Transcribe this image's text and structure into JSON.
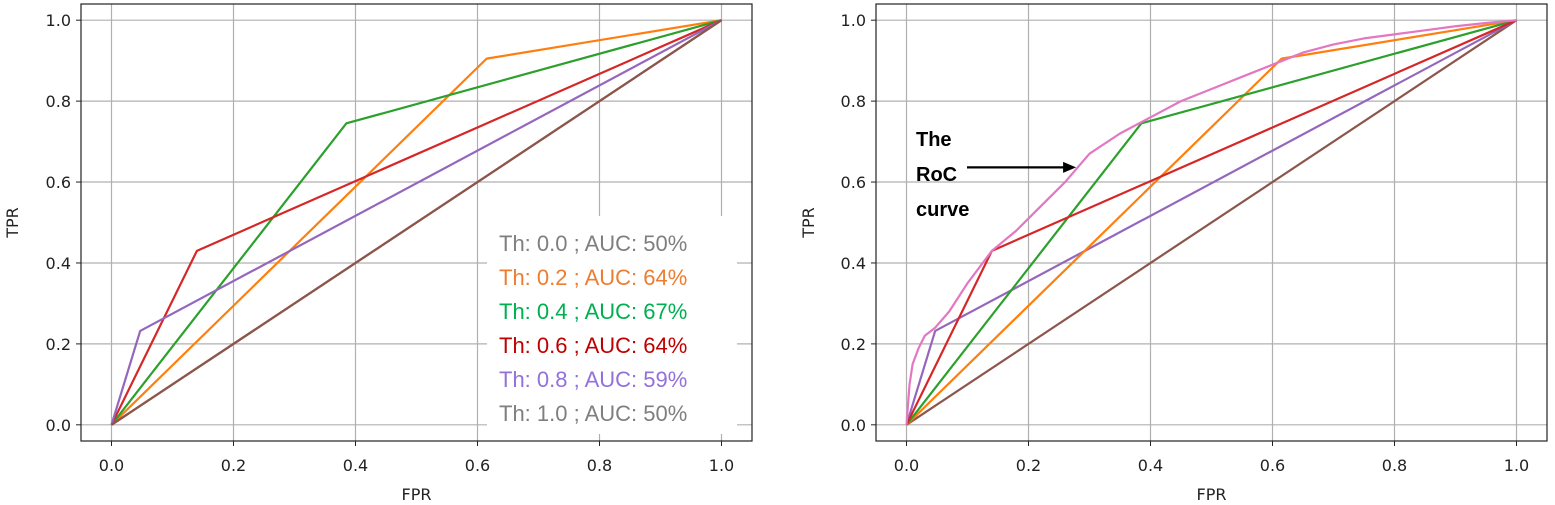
{
  "chart_data": [
    {
      "type": "line",
      "xlabel": "FPR",
      "ylabel": "TPR",
      "xlim": [
        -0.05,
        1.05
      ],
      "ylim": [
        -0.04,
        1.04
      ],
      "xticks": [
        "0.0",
        "0.2",
        "0.4",
        "0.6",
        "0.8",
        "1.0"
      ],
      "yticks": [
        "0.0",
        "0.2",
        "0.4",
        "0.6",
        "0.8",
        "1.0"
      ],
      "grid": true,
      "legend_position": "bottom-right",
      "series": [
        {
          "name": "Th:  0.0 ; AUC: 50%",
          "color": "#8c564b",
          "legend_color": "#7f7f7f",
          "x": [
            0,
            1
          ],
          "y": [
            0,
            1
          ]
        },
        {
          "name": "Th:  0.2 ; AUC: 64%",
          "color": "#ff7f0e",
          "legend_color": "#ed7d31",
          "x": [
            0,
            0.615,
            1
          ],
          "y": [
            0,
            0.905,
            1
          ]
        },
        {
          "name": "Th:  0.4 ; AUC: 67%",
          "color": "#2ca02c",
          "legend_color": "#00b050",
          "x": [
            0,
            0.385,
            1
          ],
          "y": [
            0,
            0.745,
            1
          ]
        },
        {
          "name": "Th:  0.6 ; AUC: 64%",
          "color": "#d62728",
          "legend_color": "#c00000",
          "x": [
            0,
            0.14,
            1
          ],
          "y": [
            0,
            0.43,
            1
          ]
        },
        {
          "name": "Th:  0.8 ; AUC: 59%",
          "color": "#9467bd",
          "legend_color": "#9370db",
          "x": [
            0,
            0.047,
            1
          ],
          "y": [
            0,
            0.232,
            1
          ]
        },
        {
          "name": "Th:  1.0 ; AUC: 50%",
          "color": "#8c564b",
          "legend_color": "#7f7f7f",
          "x": [
            0,
            1
          ],
          "y": [
            0,
            1
          ]
        }
      ]
    },
    {
      "type": "line",
      "xlabel": "FPR",
      "ylabel": "TPR",
      "xlim": [
        -0.05,
        1.05
      ],
      "ylim": [
        -0.04,
        1.04
      ],
      "xticks": [
        "0.0",
        "0.2",
        "0.4",
        "0.6",
        "0.8",
        "1.0"
      ],
      "yticks": [
        "0.0",
        "0.2",
        "0.4",
        "0.6",
        "0.8",
        "1.0"
      ],
      "grid": true,
      "series": [
        {
          "color": "#8c564b",
          "x": [
            0,
            1
          ],
          "y": [
            0,
            1
          ]
        },
        {
          "color": "#9467bd",
          "x": [
            0,
            0.047,
            1
          ],
          "y": [
            0,
            0.232,
            1
          ]
        },
        {
          "color": "#ff7f0e",
          "x": [
            0,
            0.615,
            1
          ],
          "y": [
            0,
            0.905,
            1
          ]
        },
        {
          "color": "#2ca02c",
          "x": [
            0,
            0.385,
            1
          ],
          "y": [
            0,
            0.745,
            1
          ]
        },
        {
          "color": "#d62728",
          "x": [
            0,
            0.14,
            1
          ],
          "y": [
            0,
            0.43,
            1
          ]
        },
        {
          "color": "#e377c2",
          "x": [
            0,
            0.005,
            0.01,
            0.02,
            0.03,
            0.047,
            0.07,
            0.1,
            0.14,
            0.18,
            0.22,
            0.26,
            0.3,
            0.35,
            0.4,
            0.45,
            0.5,
            0.55,
            0.6,
            0.65,
            0.7,
            0.75,
            0.8,
            0.85,
            0.9,
            0.95,
            1
          ],
          "y": [
            0,
            0.1,
            0.15,
            0.19,
            0.22,
            0.24,
            0.28,
            0.35,
            0.43,
            0.48,
            0.54,
            0.6,
            0.67,
            0.72,
            0.76,
            0.8,
            0.83,
            0.86,
            0.89,
            0.92,
            0.94,
            0.955,
            0.965,
            0.975,
            0.985,
            0.993,
            1
          ]
        }
      ],
      "annotation": {
        "lines": [
          "The",
          "RoC",
          "curve"
        ],
        "arrow_to": [
          0.278,
          0.635
        ]
      }
    }
  ]
}
